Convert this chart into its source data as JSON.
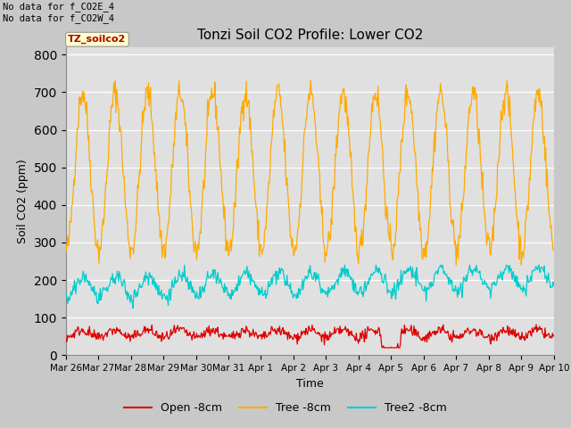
{
  "title": "Tonzi Soil CO2 Profile: Lower CO2",
  "xlabel": "Time",
  "ylabel": "Soil CO2 (ppm)",
  "ylim": [
    0,
    820
  ],
  "yticks": [
    0,
    100,
    200,
    300,
    400,
    500,
    600,
    700,
    800
  ],
  "fig_bg_color": "#c8c8c8",
  "plot_bg_color": "#e0e0e0",
  "annotation_top_left": "No data for f_CO2E_4\nNo data for f_CO2W_4",
  "box_label": "TZ_soilco2",
  "open_color": "#dd0000",
  "tree_color": "#ffaa00",
  "tree2_color": "#00cccc",
  "seed": 42,
  "day_labels": [
    "Mar 26",
    "Mar 27",
    "Mar 28",
    "Mar 29",
    "Mar 30",
    "Mar 31",
    "Apr 1",
    "Apr 2",
    "Apr 3",
    "Apr 4",
    "Apr 5",
    "Apr 6",
    "Apr 7",
    "Apr 8",
    "Apr 9",
    "Apr 10"
  ]
}
